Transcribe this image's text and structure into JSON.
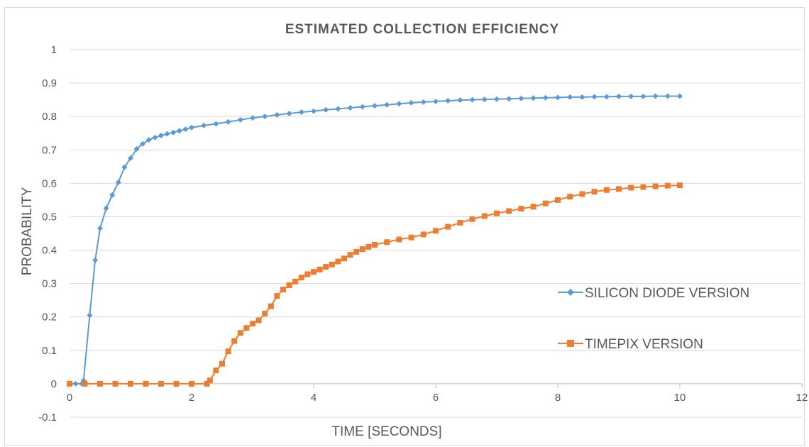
{
  "chart_data": {
    "type": "line",
    "title": "ESTIMATED COLLECTION EFFICIENCY",
    "xlabel": "TIME  [SECONDS]",
    "ylabel": "PROBABILITY",
    "xlim": [
      0,
      12
    ],
    "ylim": [
      -0.1,
      1
    ],
    "x_ticks": [
      0,
      2,
      4,
      6,
      8,
      10,
      12
    ],
    "y_ticks": [
      -0.1,
      0,
      0.1,
      0.2,
      0.3,
      0.4,
      0.5,
      0.6,
      0.7,
      0.8,
      0.9,
      1
    ],
    "y_tick_labels": [
      "-0.1",
      "0",
      "0.1",
      "0.2",
      "0.3",
      "0.4",
      "0.5",
      "0.6",
      "0.7",
      "0.8",
      "0.9",
      "1"
    ],
    "grid": "horizontal",
    "legend_position": "right",
    "series": [
      {
        "name": "SILICON DIODE VERSION",
        "color": "#5b9bd5",
        "marker": "diamond",
        "points": [
          [
            0,
            0
          ],
          [
            0.1,
            0
          ],
          [
            0.2,
            0
          ],
          [
            0.23,
            0.01
          ],
          [
            0.33,
            0.205
          ],
          [
            0.42,
            0.37
          ],
          [
            0.5,
            0.465
          ],
          [
            0.6,
            0.525
          ],
          [
            0.7,
            0.565
          ],
          [
            0.8,
            0.603
          ],
          [
            0.9,
            0.648
          ],
          [
            1.0,
            0.675
          ],
          [
            1.1,
            0.703
          ],
          [
            1.2,
            0.718
          ],
          [
            1.3,
            0.73
          ],
          [
            1.4,
            0.737
          ],
          [
            1.5,
            0.743
          ],
          [
            1.6,
            0.748
          ],
          [
            1.7,
            0.752
          ],
          [
            1.8,
            0.757
          ],
          [
            1.9,
            0.762
          ],
          [
            2.0,
            0.767
          ],
          [
            2.2,
            0.773
          ],
          [
            2.4,
            0.778
          ],
          [
            2.6,
            0.784
          ],
          [
            2.8,
            0.79
          ],
          [
            3.0,
            0.796
          ],
          [
            3.2,
            0.8
          ],
          [
            3.4,
            0.805
          ],
          [
            3.6,
            0.809
          ],
          [
            3.8,
            0.813
          ],
          [
            4.0,
            0.816
          ],
          [
            4.2,
            0.82
          ],
          [
            4.4,
            0.823
          ],
          [
            4.6,
            0.826
          ],
          [
            4.8,
            0.829
          ],
          [
            5.0,
            0.832
          ],
          [
            5.2,
            0.835
          ],
          [
            5.4,
            0.838
          ],
          [
            5.6,
            0.841
          ],
          [
            5.8,
            0.843
          ],
          [
            6.0,
            0.845
          ],
          [
            6.2,
            0.847
          ],
          [
            6.4,
            0.849
          ],
          [
            6.6,
            0.85
          ],
          [
            6.8,
            0.851
          ],
          [
            7.0,
            0.852
          ],
          [
            7.2,
            0.853
          ],
          [
            7.4,
            0.854
          ],
          [
            7.6,
            0.855
          ],
          [
            7.8,
            0.856
          ],
          [
            8.0,
            0.857
          ],
          [
            8.2,
            0.858
          ],
          [
            8.4,
            0.858
          ],
          [
            8.6,
            0.859
          ],
          [
            8.8,
            0.859
          ],
          [
            9.0,
            0.86
          ],
          [
            9.2,
            0.86
          ],
          [
            9.4,
            0.86
          ],
          [
            9.6,
            0.861
          ],
          [
            9.8,
            0.861
          ],
          [
            10.0,
            0.861
          ]
        ]
      },
      {
        "name": "TIMEPIX VERSION",
        "color": "#ed7d31",
        "marker": "square",
        "points": [
          [
            0,
            0
          ],
          [
            0.25,
            0
          ],
          [
            0.5,
            0
          ],
          [
            0.75,
            0
          ],
          [
            1.0,
            0
          ],
          [
            1.25,
            0
          ],
          [
            1.5,
            0
          ],
          [
            1.75,
            0
          ],
          [
            2.0,
            0
          ],
          [
            2.25,
            0
          ],
          [
            2.3,
            0.01
          ],
          [
            2.4,
            0.04
          ],
          [
            2.5,
            0.06
          ],
          [
            2.6,
            0.097
          ],
          [
            2.7,
            0.128
          ],
          [
            2.8,
            0.152
          ],
          [
            2.9,
            0.167
          ],
          [
            3.0,
            0.18
          ],
          [
            3.1,
            0.19
          ],
          [
            3.2,
            0.21
          ],
          [
            3.3,
            0.232
          ],
          [
            3.4,
            0.263
          ],
          [
            3.5,
            0.282
          ],
          [
            3.6,
            0.295
          ],
          [
            3.7,
            0.306
          ],
          [
            3.8,
            0.318
          ],
          [
            3.9,
            0.328
          ],
          [
            4.0,
            0.335
          ],
          [
            4.1,
            0.342
          ],
          [
            4.2,
            0.35
          ],
          [
            4.3,
            0.357
          ],
          [
            4.4,
            0.366
          ],
          [
            4.5,
            0.375
          ],
          [
            4.6,
            0.386
          ],
          [
            4.7,
            0.395
          ],
          [
            4.8,
            0.403
          ],
          [
            4.9,
            0.41
          ],
          [
            5.0,
            0.416
          ],
          [
            5.2,
            0.424
          ],
          [
            5.4,
            0.432
          ],
          [
            5.6,
            0.438
          ],
          [
            5.8,
            0.447
          ],
          [
            6.0,
            0.458
          ],
          [
            6.2,
            0.47
          ],
          [
            6.4,
            0.482
          ],
          [
            6.6,
            0.493
          ],
          [
            6.8,
            0.502
          ],
          [
            7.0,
            0.51
          ],
          [
            7.2,
            0.517
          ],
          [
            7.4,
            0.524
          ],
          [
            7.6,
            0.53
          ],
          [
            7.8,
            0.54
          ],
          [
            8.0,
            0.55
          ],
          [
            8.2,
            0.56
          ],
          [
            8.4,
            0.568
          ],
          [
            8.6,
            0.575
          ],
          [
            8.8,
            0.58
          ],
          [
            9.0,
            0.583
          ],
          [
            9.2,
            0.587
          ],
          [
            9.4,
            0.589
          ],
          [
            9.6,
            0.591
          ],
          [
            9.8,
            0.593
          ],
          [
            10.0,
            0.594
          ]
        ]
      }
    ]
  }
}
